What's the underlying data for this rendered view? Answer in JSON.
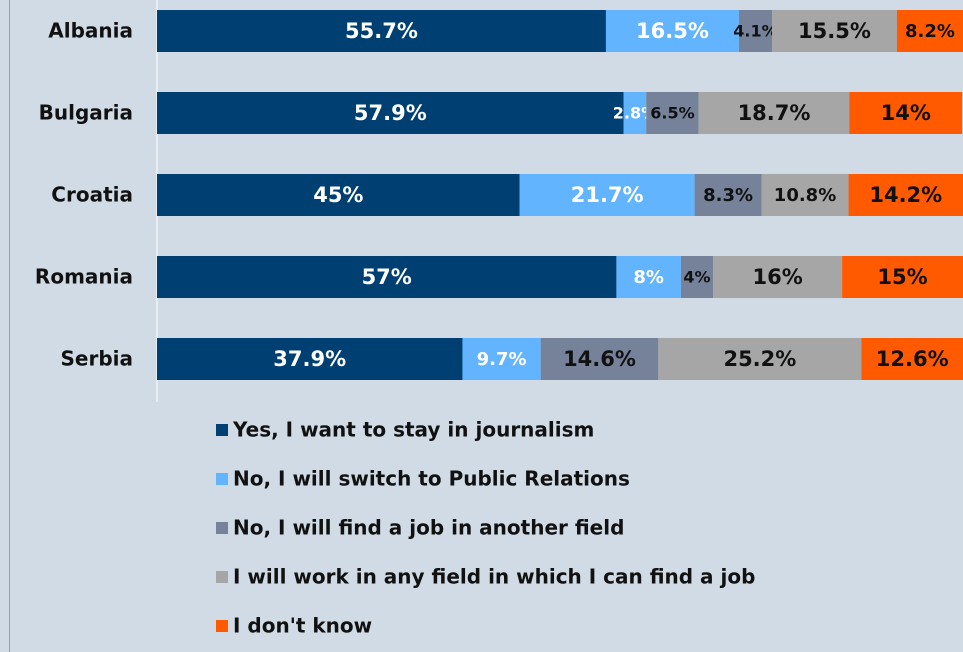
{
  "chart_data": {
    "type": "bar",
    "orientation": "horizontal",
    "stacked": true,
    "percent_stacked": true,
    "title": "",
    "xlabel": "",
    "ylabel": "",
    "xlim": [
      0,
      100
    ],
    "grid": false,
    "legend_position": "bottom",
    "categories": [
      "Albania",
      "Bulgaria",
      "Croatia",
      "Romania",
      "Serbia"
    ],
    "series": [
      {
        "name": "Yes, I want to stay in journalism",
        "color": "#003f72",
        "label_color": "#ffffff",
        "values": [
          55.7,
          57.9,
          45,
          57,
          37.9
        ],
        "labels": [
          "55.7%",
          "57.9%",
          "45%",
          "57%",
          "37.9%"
        ]
      },
      {
        "name": "No, I will switch to Public Relations",
        "color": "#63b4ff",
        "label_color": "#ffffff",
        "values": [
          16.5,
          2.8,
          21.7,
          8,
          9.7
        ],
        "labels": [
          "16.5%",
          "2.8%",
          "21.7%",
          "8%",
          "9.7%"
        ]
      },
      {
        "name": "No, I will find a job in another field",
        "color": "#75829a",
        "label_color": "#111111",
        "values": [
          4.1,
          6.5,
          8.3,
          4,
          14.6
        ],
        "labels": [
          "4.1%",
          "6.5%",
          "8.3%",
          "4%",
          "14.6%"
        ]
      },
      {
        "name": "I will work in any field in which I can find a job",
        "color": "#a6a6a6",
        "label_color": "#111111",
        "values": [
          15.5,
          18.7,
          10.8,
          16,
          25.2
        ],
        "labels": [
          "15.5%",
          "18.7%",
          "10.8%",
          "16%",
          "25.2%"
        ]
      },
      {
        "name": "I don't know",
        "color": "#ff5a00",
        "label_color": "#111111",
        "values": [
          8.2,
          14,
          14.2,
          15,
          12.6
        ],
        "labels": [
          "8.2%",
          "14%",
          "14.2%",
          "15%",
          "12.6%"
        ]
      }
    ]
  }
}
